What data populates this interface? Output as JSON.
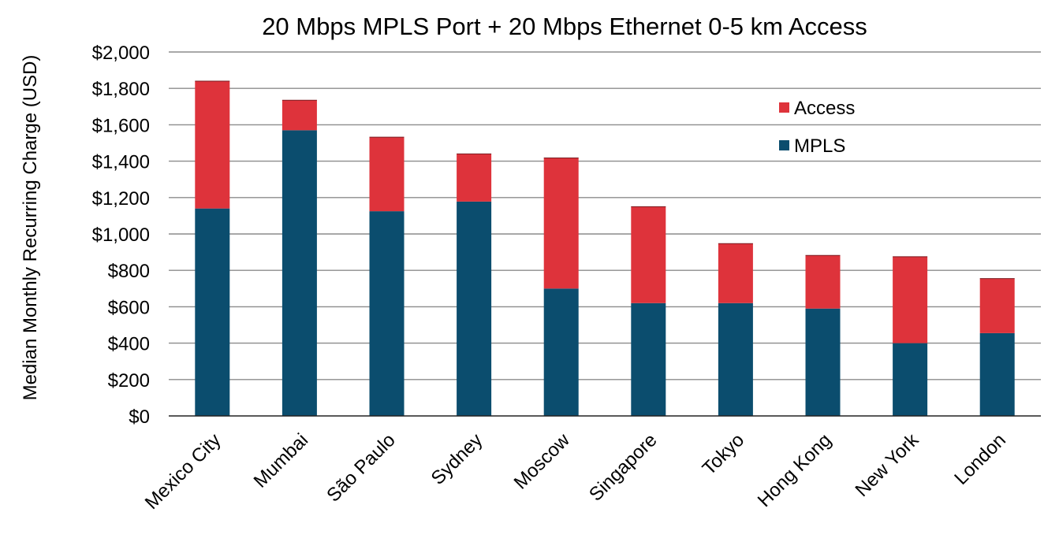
{
  "chart_data": {
    "type": "bar",
    "stacked": true,
    "title": "20 Mbps MPLS Port + 20 Mbps Ethernet 0-5 km Access",
    "xlabel": "",
    "ylabel": "Median Monthly Recurring Charge (USD)",
    "ylim": [
      0,
      2000
    ],
    "yticks": [
      0,
      200,
      400,
      600,
      800,
      1000,
      1200,
      1400,
      1600,
      1800,
      2000
    ],
    "ytick_labels": [
      "$0",
      "$200",
      "$400",
      "$600",
      "$800",
      "$1,000",
      "$1,200",
      "$1,400",
      "$1,600",
      "$1,800",
      "$2,000"
    ],
    "grid": true,
    "legend_position": "top-right",
    "categories": [
      "Mexico City",
      "Mumbai",
      "São Paulo",
      "Sydney",
      "Moscow",
      "Singapore",
      "Tokyo",
      "Hong Kong",
      "New York",
      "London"
    ],
    "series": [
      {
        "name": "MPLS",
        "color": "#0b4d6e",
        "values": [
          1140,
          1570,
          1125,
          1178,
          700,
          620,
          620,
          590,
          400,
          455
        ]
      },
      {
        "name": "Access",
        "color": "#de333b",
        "values": [
          700,
          165,
          407,
          262,
          718,
          530,
          327,
          292,
          475,
          300
        ]
      }
    ],
    "legend_order": [
      "Access",
      "MPLS"
    ]
  }
}
